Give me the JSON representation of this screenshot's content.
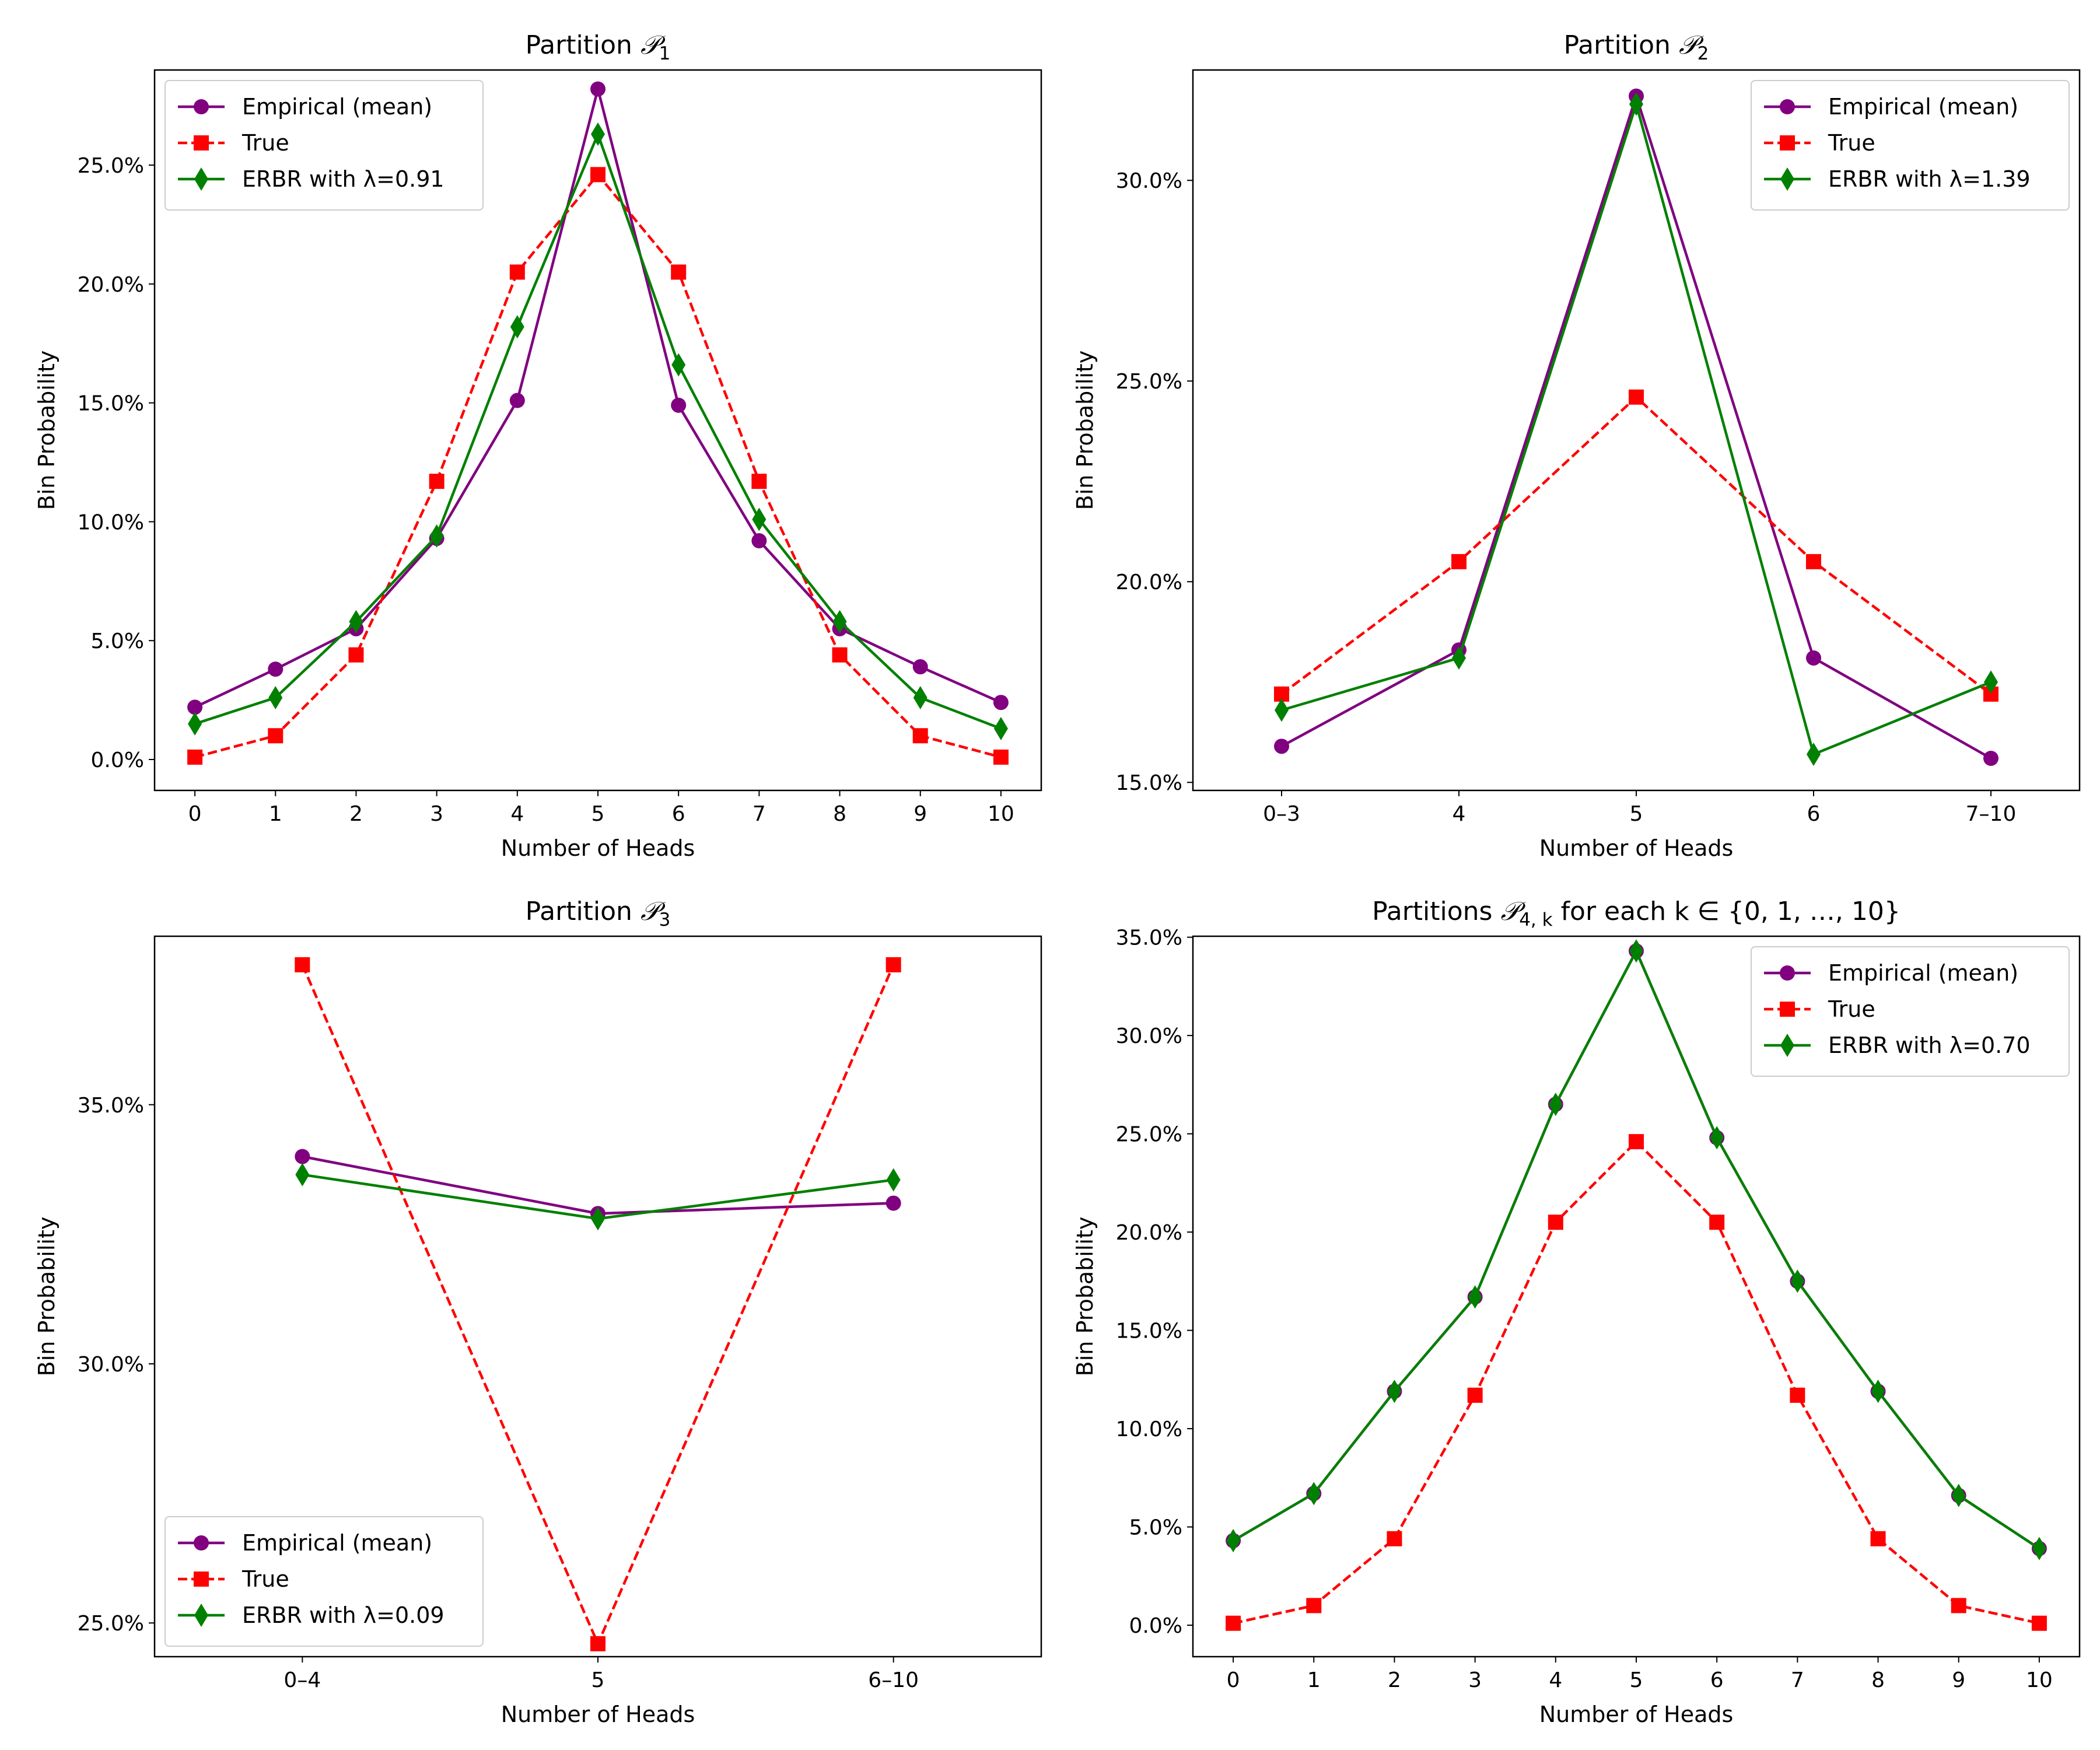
{
  "chart_data": [
    {
      "type": "line",
      "title": "Partition",
      "title_sub": "1",
      "xlabel": "Number of Heads",
      "ylabel": "Bin Probability",
      "categories": [
        "0",
        "1",
        "2",
        "3",
        "4",
        "5",
        "6",
        "7",
        "8",
        "9",
        "10"
      ],
      "ylim": [
        -0.013,
        0.29
      ],
      "yticks": [
        0.0,
        0.05,
        0.1,
        0.15,
        0.2,
        0.25
      ],
      "ytick_labels": [
        "0.0%",
        "5.0%",
        "10.0%",
        "15.0%",
        "20.0%",
        "25.0%"
      ],
      "legend_loc": "top-left",
      "series": [
        {
          "name": "Empirical (mean)",
          "color": "#800080",
          "marker": "circle",
          "dash": false,
          "values": [
            0.022,
            0.038,
            0.055,
            0.093,
            0.151,
            0.282,
            0.149,
            0.092,
            0.055,
            0.039,
            0.024
          ]
        },
        {
          "name": "True",
          "color": "#ff0000",
          "marker": "square",
          "dash": true,
          "values": [
            0.001,
            0.01,
            0.044,
            0.117,
            0.205,
            0.246,
            0.205,
            0.117,
            0.044,
            0.01,
            0.001
          ]
        },
        {
          "name": "ERBR with λ=0.91",
          "color": "#008000",
          "marker": "diamond",
          "dash": false,
          "values": [
            0.015,
            0.026,
            0.058,
            0.094,
            0.182,
            0.263,
            0.166,
            0.101,
            0.058,
            0.026,
            0.013
          ]
        }
      ]
    },
    {
      "type": "line",
      "title": "Partition",
      "title_sub": "2",
      "xlabel": "Number of Heads",
      "ylabel": "Bin Probability",
      "categories": [
        "0–3",
        "4",
        "5",
        "6",
        "7–10"
      ],
      "ylim": [
        0.148,
        0.3275
      ],
      "yticks": [
        0.15,
        0.2,
        0.25,
        0.3
      ],
      "ytick_labels": [
        "15.0%",
        "20.0%",
        "25.0%",
        "30.0%"
      ],
      "legend_loc": "top-right",
      "series": [
        {
          "name": "Empirical (mean)",
          "color": "#800080",
          "marker": "circle",
          "dash": false,
          "values": [
            0.159,
            0.183,
            0.321,
            0.181,
            0.156
          ]
        },
        {
          "name": "True",
          "color": "#ff0000",
          "marker": "square",
          "dash": true,
          "values": [
            0.172,
            0.205,
            0.246,
            0.205,
            0.172
          ]
        },
        {
          "name": "ERBR with λ=1.39",
          "color": "#008000",
          "marker": "diamond",
          "dash": false,
          "values": [
            0.168,
            0.181,
            0.319,
            0.157,
            0.175
          ]
        }
      ]
    },
    {
      "type": "line",
      "title": "Partition",
      "title_sub": "3",
      "xlabel": "Number of Heads",
      "ylabel": "Bin Probability",
      "categories": [
        "0–4",
        "5",
        "6–10"
      ],
      "ylim": [
        0.2435,
        0.3825
      ],
      "yticks": [
        0.25,
        0.3,
        0.35
      ],
      "ytick_labels": [
        "25.0%",
        "30.0%",
        "35.0%"
      ],
      "legend_loc": "bottom-left",
      "series": [
        {
          "name": "Empirical (mean)",
          "color": "#800080",
          "marker": "circle",
          "dash": false,
          "values": [
            0.34,
            0.329,
            0.331
          ]
        },
        {
          "name": "True",
          "color": "#ff0000",
          "marker": "square",
          "dash": true,
          "values": [
            0.377,
            0.246,
            0.377
          ]
        },
        {
          "name": "ERBR with λ=0.09",
          "color": "#008000",
          "marker": "diamond",
          "dash": false,
          "values": [
            0.3365,
            0.328,
            0.3355
          ]
        }
      ]
    },
    {
      "type": "line",
      "title": "Partitions",
      "title_sub": "4, k",
      "title_suffix": " for each k ∈ {0, 1, …, 10}",
      "xlabel": "Number of Heads",
      "ylabel": "Bin Probability",
      "categories": [
        "0",
        "1",
        "2",
        "3",
        "4",
        "5",
        "6",
        "7",
        "8",
        "9",
        "10"
      ],
      "ylim": [
        -0.016,
        0.3505
      ],
      "yticks": [
        0.0,
        0.05,
        0.1,
        0.15,
        0.2,
        0.25,
        0.3,
        0.35
      ],
      "ytick_labels": [
        "0.0%",
        "5.0%",
        "10.0%",
        "15.0%",
        "20.0%",
        "25.0%",
        "30.0%",
        "35.0%"
      ],
      "legend_loc": "top-right",
      "series": [
        {
          "name": "Empirical (mean)",
          "color": "#800080",
          "marker": "circle",
          "dash": false,
          "values": [
            0.043,
            0.067,
            0.119,
            0.167,
            0.265,
            0.343,
            0.248,
            0.175,
            0.119,
            0.066,
            0.039
          ]
        },
        {
          "name": "True",
          "color": "#ff0000",
          "marker": "square",
          "dash": true,
          "values": [
            0.001,
            0.01,
            0.044,
            0.117,
            0.205,
            0.246,
            0.205,
            0.117,
            0.044,
            0.01,
            0.001
          ]
        },
        {
          "name": "ERBR with λ=0.70",
          "color": "#008000",
          "marker": "diamond",
          "dash": false,
          "values": [
            0.043,
            0.067,
            0.119,
            0.167,
            0.265,
            0.343,
            0.248,
            0.175,
            0.119,
            0.066,
            0.039
          ]
        }
      ]
    }
  ]
}
